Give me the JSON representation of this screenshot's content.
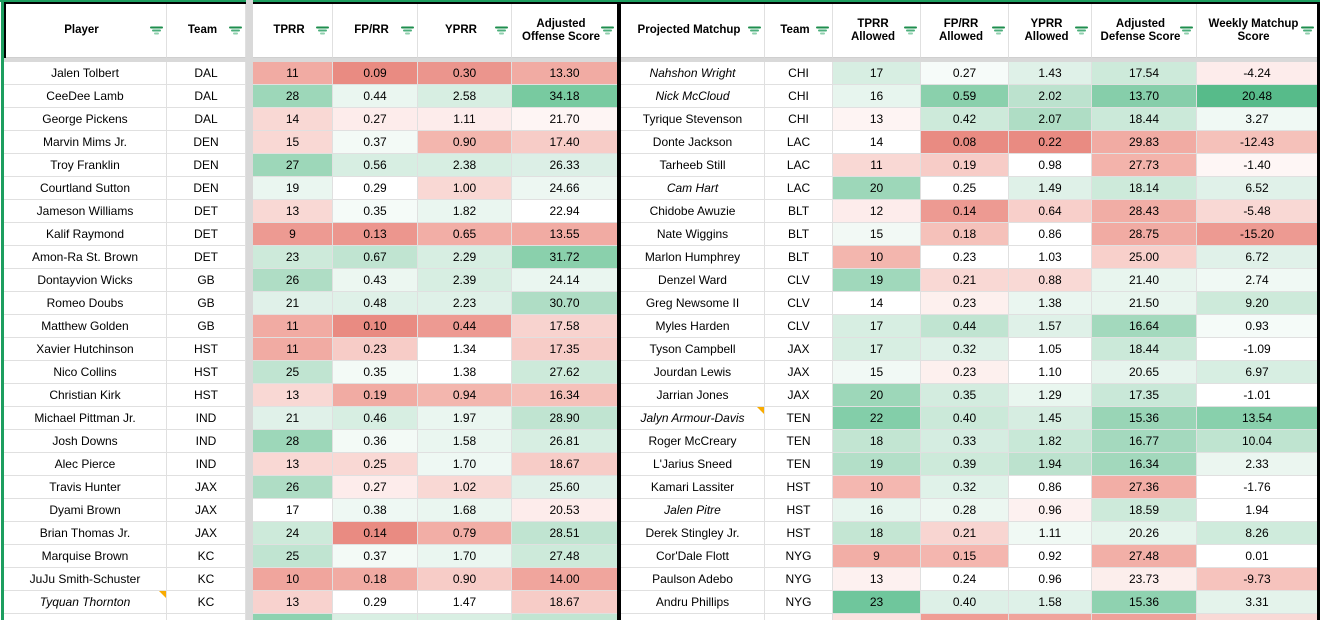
{
  "colors": {
    "table_border_green": "#1d9e5f",
    "table_border_black": "#000000",
    "gridline": "#e0e0e0",
    "hidden_rowcol_strip_gray": "#d9d9d9",
    "note_marker_orange": "#f9ab00",
    "filter_icon_green": "#1e8e4d",
    "cf_strong_red": "#e98b82",
    "cf_strong_green": "#57bb8a"
  },
  "offense_table": {
    "headers": [
      "Player",
      "Team",
      "TPRR",
      "FP/RR",
      "YPRR",
      "Adjusted Offense Score"
    ],
    "slugs": [
      "player",
      "team",
      "tprr",
      "fp-rr",
      "yprr",
      "adjusted-offense-score"
    ],
    "gap_after": 1,
    "rows": [
      {
        "name": "Jalen Tolbert",
        "team": "DAL",
        "values": [
          "11",
          "0.09",
          "0.30",
          "13.30"
        ],
        "colors": [
          "#f1aba3",
          "#e98b82",
          "#eb958d",
          "#f1aba3"
        ]
      },
      {
        "name": "CeeDee Lamb",
        "team": "DAL",
        "values": [
          "28",
          "0.44",
          "2.58",
          "34.18"
        ],
        "colors": [
          "#9dd7b9",
          "#eaf6f0",
          "#d7eee2",
          "#78caa0"
        ]
      },
      {
        "name": "George Pickens",
        "team": "DAL",
        "values": [
          "14",
          "0.27",
          "1.11",
          "21.70"
        ],
        "colors": [
          "#f9d8d4",
          "#fdeceb",
          "#fdeceb",
          "#fef5f4"
        ]
      },
      {
        "name": "Marvin Mims Jr.",
        "team": "DEN",
        "values": [
          "15",
          "0.37",
          "0.90",
          "17.40"
        ],
        "colors": [
          "#f9d8d4",
          "#f3faf6",
          "#f3b6ae",
          "#f7ccc7"
        ]
      },
      {
        "name": "Troy Franklin",
        "team": "DEN",
        "values": [
          "27",
          "0.56",
          "2.38",
          "26.33"
        ],
        "colors": [
          "#9dd7b9",
          "#d7eee2",
          "#d7eee2",
          "#dcefe6"
        ]
      },
      {
        "name": "Courtland Sutton",
        "team": "DEN",
        "values": [
          "19",
          "0.29",
          "1.00",
          "24.66"
        ],
        "colors": [
          "#eaf6f0",
          "#ffffff",
          "#f9d8d4",
          "#edf7f2"
        ]
      },
      {
        "name": "Jameson Williams",
        "team": "DET",
        "values": [
          "13",
          "0.35",
          "1.82",
          "22.94"
        ],
        "colors": [
          "#f9d8d4",
          "#f5fbf8",
          "#eaf6f0",
          "#ffffff"
        ]
      },
      {
        "name": "Kalif Raymond",
        "team": "DET",
        "values": [
          "9",
          "0.13",
          "0.65",
          "13.55"
        ],
        "colors": [
          "#ed9a92",
          "#ec968e",
          "#f2aea6",
          "#f1aba3"
        ]
      },
      {
        "name": "Amon-Ra St. Brown",
        "team": "DET",
        "values": [
          "23",
          "0.67",
          "2.29",
          "31.72"
        ],
        "colors": [
          "#cdeada",
          "#c0e4d1",
          "#d7eee2",
          "#8ad0ac"
        ]
      },
      {
        "name": "Dontayvion Wicks",
        "team": "GB",
        "values": [
          "26",
          "0.43",
          "2.39",
          "24.14"
        ],
        "colors": [
          "#afddc5",
          "#ecf7f1",
          "#d7eee2",
          "#eaf6f0"
        ]
      },
      {
        "name": "Romeo Doubs",
        "team": "GB",
        "values": [
          "21",
          "0.48",
          "2.23",
          "30.70"
        ],
        "colors": [
          "#e0f1e9",
          "#dff1e8",
          "#dff1e8",
          "#afddc5"
        ]
      },
      {
        "name": "Matthew Golden",
        "team": "GB",
        "values": [
          "11",
          "0.10",
          "0.44",
          "17.58"
        ],
        "colors": [
          "#f1aba3",
          "#e98b82",
          "#ed9a92",
          "#f8d3cf"
        ]
      },
      {
        "name": "Xavier Hutchinson",
        "team": "HST",
        "values": [
          "11",
          "0.23",
          "1.34",
          "17.35"
        ],
        "colors": [
          "#f1aba3",
          "#f7ccc7",
          "#ffffff",
          "#f7ccc7"
        ]
      },
      {
        "name": "Nico Collins",
        "team": "HST",
        "values": [
          "25",
          "0.35",
          "1.38",
          "27.62"
        ],
        "colors": [
          "#c0e4d1",
          "#f3faf6",
          "#ffffff",
          "#cdeada"
        ]
      },
      {
        "name": "Christian Kirk",
        "team": "HST",
        "values": [
          "13",
          "0.19",
          "0.94",
          "16.34"
        ],
        "colors": [
          "#f9d8d4",
          "#f1aba3",
          "#f3b6ae",
          "#f5c1ba"
        ]
      },
      {
        "name": "Michael Pittman Jr.",
        "team": "IND",
        "values": [
          "21",
          "0.46",
          "1.97",
          "28.90"
        ],
        "colors": [
          "#e0f1e9",
          "#d7eee2",
          "#eaf6f0",
          "#c0e4d1"
        ]
      },
      {
        "name": "Josh Downs",
        "team": "IND",
        "values": [
          "28",
          "0.36",
          "1.58",
          "26.81"
        ],
        "colors": [
          "#9dd7b9",
          "#f3faf6",
          "#eaf6f0",
          "#d7eee2"
        ]
      },
      {
        "name": "Alec Pierce",
        "team": "IND",
        "values": [
          "13",
          "0.25",
          "1.70",
          "18.67"
        ],
        "colors": [
          "#f9d8d4",
          "#f9d8d4",
          "#eef8f3",
          "#f7ccc7"
        ]
      },
      {
        "name": "Travis Hunter",
        "team": "JAX",
        "values": [
          "26",
          "0.27",
          "1.02",
          "25.60"
        ],
        "colors": [
          "#afddc5",
          "#fdeceb",
          "#f9d8d4",
          "#e0f1e9"
        ]
      },
      {
        "name": "Dyami Brown",
        "team": "JAX",
        "values": [
          "17",
          "0.38",
          "1.68",
          "20.53"
        ],
        "colors": [
          "#ffffff",
          "#eef8f3",
          "#eaf6f0",
          "#fdeceb"
        ]
      },
      {
        "name": "Brian Thomas Jr.",
        "team": "JAX",
        "values": [
          "24",
          "0.14",
          "0.79",
          "28.51"
        ],
        "colors": [
          "#cdeada",
          "#e98b82",
          "#f2aea6",
          "#c0e4d1"
        ]
      },
      {
        "name": "Marquise Brown",
        "team": "KC",
        "values": [
          "25",
          "0.37",
          "1.70",
          "27.48"
        ],
        "colors": [
          "#c0e4d1",
          "#f3faf6",
          "#eaf6f0",
          "#cdeada"
        ]
      },
      {
        "name": "JuJu Smith-Schuster",
        "team": "KC",
        "values": [
          "10",
          "0.18",
          "0.90",
          "14.00"
        ],
        "colors": [
          "#f0a59d",
          "#f1aba3",
          "#f7ccc7",
          "#f0a59d"
        ]
      },
      {
        "name": "Tyquan Thornton",
        "team": "KC",
        "italic": true,
        "note": true,
        "values": [
          "13",
          "0.29",
          "1.47",
          "18.67"
        ],
        "colors": [
          "#f8d2ce",
          "#ffffff",
          "#ffffff",
          "#f7ccc7"
        ]
      }
    ],
    "partial_row_colors": [
      "#ffffff",
      "#ffffff",
      "#8ed2b0",
      "#d9efe3",
      "#d9efe3",
      "#c2e5d2"
    ]
  },
  "defense_table": {
    "headers": [
      "Projected Matchup",
      "Team",
      "TPRR Allowed",
      "FP/RR Allowed",
      "YPRR Allowed",
      "Adjusted Defense Score",
      "Weekly Matchup Score"
    ],
    "slugs": [
      "projected-matchup",
      "team",
      "tprr-allowed",
      "fp-rr-allowed",
      "yprr-allowed",
      "adjusted-defense-score",
      "weekly-matchup-score"
    ],
    "gap_after": -1,
    "rows": [
      {
        "name": "Nahshon Wright",
        "team": "CHI",
        "italic": true,
        "values": [
          "17",
          "0.27",
          "1.43",
          "17.54",
          "-4.24"
        ],
        "colors": [
          "#d7eee2",
          "#f6fbf9",
          "#dff1e8",
          "#cdeada",
          "#fdeceb"
        ]
      },
      {
        "name": "Nick McCloud",
        "team": "CHI",
        "italic": true,
        "values": [
          "16",
          "0.59",
          "2.02",
          "13.70",
          "20.48"
        ],
        "colors": [
          "#e7f5ee",
          "#8ad0ac",
          "#bce2ce",
          "#86ceaa",
          "#57bb8a"
        ]
      },
      {
        "name": "Tyrique Stevenson",
        "team": "CHI",
        "values": [
          "13",
          "0.42",
          "2.07",
          "18.44",
          "3.27"
        ],
        "colors": [
          "#fef4f3",
          "#cdeada",
          "#afddc5",
          "#cbe9d9",
          "#f0f9f4"
        ]
      },
      {
        "name": "Donte Jackson",
        "team": "LAC",
        "values": [
          "14",
          "0.08",
          "0.22",
          "29.83",
          "-12.43"
        ],
        "colors": [
          "#ffffff",
          "#e98b82",
          "#e98b82",
          "#f1aba3",
          "#f5c1ba"
        ]
      },
      {
        "name": "Tarheeb Still",
        "team": "LAC",
        "values": [
          "11",
          "0.19",
          "0.98",
          "27.73",
          "-1.40"
        ],
        "colors": [
          "#f9d8d4",
          "#f7ccc7",
          "#ffffff",
          "#f3b3ab",
          "#fef6f5"
        ]
      },
      {
        "name": "Cam Hart",
        "team": "LAC",
        "italic": true,
        "values": [
          "20",
          "0.25",
          "1.49",
          "18.14",
          "6.52"
        ],
        "colors": [
          "#9dd7b9",
          "#ffffff",
          "#dff1e8",
          "#cdeada",
          "#e0f1e9"
        ]
      },
      {
        "name": "Chidobe Awuzie",
        "team": "BLT",
        "values": [
          "12",
          "0.14",
          "0.64",
          "28.43",
          "-5.48"
        ],
        "colors": [
          "#fdeceb",
          "#ed9a92",
          "#f8cfca",
          "#f1ada5",
          "#f9d8d4"
        ]
      },
      {
        "name": "Nate Wiggins",
        "team": "BLT",
        "values": [
          "15",
          "0.18",
          "0.86",
          "28.75",
          "-15.20"
        ],
        "colors": [
          "#f2f9f5",
          "#f5c1ba",
          "#ffffff",
          "#f1aba3",
          "#ed9a92"
        ]
      },
      {
        "name": "Marlon Humphrey",
        "team": "BLT",
        "values": [
          "10",
          "0.23",
          "1.03",
          "25.00",
          "6.72"
        ],
        "colors": [
          "#f3b6ae",
          "#ffffff",
          "#ffffff",
          "#f8d0cb",
          "#e0f1e9"
        ]
      },
      {
        "name": "Denzel Ward",
        "team": "CLV",
        "values": [
          "19",
          "0.21",
          "0.88",
          "21.40",
          "2.74"
        ],
        "colors": [
          "#a0d8bb",
          "#f9d8d4",
          "#f9d9d5",
          "#e8f5ee",
          "#f0f9f4"
        ]
      },
      {
        "name": "Greg Newsome II",
        "team": "CLV",
        "values": [
          "14",
          "0.23",
          "1.38",
          "21.50",
          "9.20"
        ],
        "colors": [
          "#ffffff",
          "#fdf0ee",
          "#eaf6f0",
          "#e8f5ee",
          "#cdeada"
        ]
      },
      {
        "name": "Myles Harden",
        "team": "CLV",
        "values": [
          "17",
          "0.44",
          "1.57",
          "16.64",
          "0.93"
        ],
        "colors": [
          "#d7eee2",
          "#c0e4d1",
          "#dff1e8",
          "#a3d9bd",
          "#f5fbf8"
        ]
      },
      {
        "name": "Tyson Campbell",
        "team": "JAX",
        "values": [
          "17",
          "0.32",
          "1.05",
          "18.44",
          "-1.09"
        ],
        "colors": [
          "#d7eee2",
          "#dff1e8",
          "#ffffff",
          "#cbe9d9",
          "#ffffff"
        ]
      },
      {
        "name": "Jourdan Lewis",
        "team": "JAX",
        "values": [
          "15",
          "0.23",
          "1.10",
          "20.65",
          "6.97"
        ],
        "colors": [
          "#f1f9f5",
          "#fdf0ee",
          "#ffffff",
          "#e6f4ed",
          "#d7eee2"
        ]
      },
      {
        "name": "Jarrian Jones",
        "team": "JAX",
        "values": [
          "20",
          "0.35",
          "1.29",
          "17.35",
          "-1.01"
        ],
        "colors": [
          "#9dd7b9",
          "#d3ecdf",
          "#e9f6ef",
          "#c9e8d8",
          "#ffffff"
        ]
      },
      {
        "name": "Jalyn Armour-Davis",
        "team": "TEN",
        "italic": true,
        "note": true,
        "values": [
          "22",
          "0.40",
          "1.45",
          "15.36",
          "13.54"
        ],
        "colors": [
          "#83cea9",
          "#cbe9d9",
          "#d6ede1",
          "#99d5b6",
          "#88d0ac"
        ]
      },
      {
        "name": "Roger McCreary",
        "team": "TEN",
        "values": [
          "18",
          "0.33",
          "1.82",
          "16.77",
          "10.04"
        ],
        "colors": [
          "#c2e5d2",
          "#d5ede1",
          "#c8e8d7",
          "#a4d9be",
          "#bfe4d0"
        ]
      },
      {
        "name": "L'Jarius Sneed",
        "team": "TEN",
        "values": [
          "19",
          "0.39",
          "1.94",
          "16.34",
          "2.33"
        ],
        "colors": [
          "#b3dfc8",
          "#cdeada",
          "#bce2ce",
          "#a2d8bc",
          "#ebf6f0"
        ]
      },
      {
        "name": "Kamari Lassiter",
        "team": "HST",
        "values": [
          "10",
          "0.32",
          "0.86",
          "27.36",
          "-1.76"
        ],
        "colors": [
          "#f4b7b0",
          "#e0f2e9",
          "#ffffff",
          "#f2aea6",
          "#ffffff"
        ]
      },
      {
        "name": "Jalen Pitre",
        "team": "HST",
        "italic": true,
        "values": [
          "16",
          "0.28",
          "0.96",
          "18.59",
          "1.94"
        ],
        "colors": [
          "#e7f5ee",
          "#ecf7f1",
          "#fdf1f0",
          "#cdeada",
          "#ffffff"
        ]
      },
      {
        "name": "Derek Stingley Jr.",
        "team": "HST",
        "values": [
          "18",
          "0.21",
          "1.11",
          "20.26",
          "8.26"
        ],
        "colors": [
          "#c4e6d3",
          "#f8d5d1",
          "#f0f9f4",
          "#e5f4ec",
          "#cfebdc"
        ]
      },
      {
        "name": "Cor'Dale Flott",
        "team": "NYG",
        "values": [
          "9",
          "0.15",
          "0.92",
          "27.48",
          "0.01"
        ],
        "colors": [
          "#f2aea6",
          "#f4b6af",
          "#ffffff",
          "#f2afa7",
          "#ffffff"
        ]
      },
      {
        "name": "Paulson Adebo",
        "team": "NYG",
        "values": [
          "13",
          "0.24",
          "0.96",
          "23.73",
          "-9.73"
        ],
        "colors": [
          "#fdf1f0",
          "#ffffff",
          "#ffffff",
          "#fceeec",
          "#f6c3bd"
        ]
      },
      {
        "name": "Andru Phillips",
        "team": "NYG",
        "values": [
          "23",
          "0.40",
          "1.58",
          "15.36",
          "3.31"
        ],
        "colors": [
          "#6fc69c",
          "#ddf0e7",
          "#def1e8",
          "#8fd2b0",
          "#e4f3eb"
        ]
      }
    ],
    "partial_row_colors": [
      "#ffffff",
      "#ffffff",
      "#fbe3e0",
      "#ef9d95",
      "#f0a49c",
      "#efa19a",
      "#f9d9d6"
    ]
  }
}
